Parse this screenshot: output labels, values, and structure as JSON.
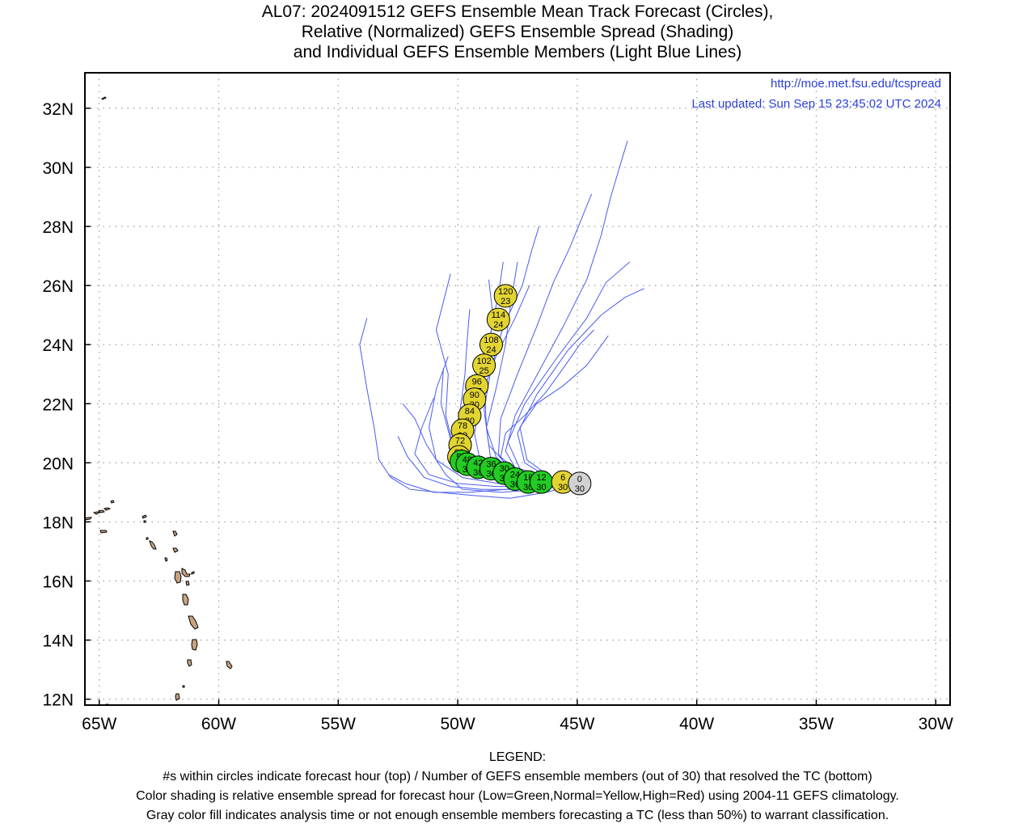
{
  "title": {
    "line1": "AL07: 2024091512 GEFS Ensemble Mean Track Forecast (Circles),",
    "line2": "Relative (Normalized) GEFS Ensemble Spread (Shading)",
    "line3": "and Individual GEFS Ensemble Members (Light Blue Lines)"
  },
  "url_text": "http://moe.met.fsu.edu/tcspread",
  "updated_text": "Last updated: Sun Sep 15 23:45:02 UTC 2024",
  "colors": {
    "member_line": "#4a5cf0",
    "land": "#c8a47e",
    "grid": "#9a9a9a",
    "spread_low": "#22cc22",
    "spread_normal": "#e3d531",
    "spread_high": "#e02020",
    "analysis_gray": "#d2d2d2",
    "url": "#2a3fd6"
  },
  "chart_data": {
    "type": "map",
    "x_axis": {
      "range": [
        -65.6,
        -29.4
      ],
      "ticks": [
        {
          "value": -65,
          "label": "65W"
        },
        {
          "value": -60,
          "label": "60W"
        },
        {
          "value": -55,
          "label": "55W"
        },
        {
          "value": -50,
          "label": "50W"
        },
        {
          "value": -45,
          "label": "45W"
        },
        {
          "value": -40,
          "label": "40W"
        },
        {
          "value": -35,
          "label": "35W"
        },
        {
          "value": -30,
          "label": "30W"
        }
      ]
    },
    "y_axis": {
      "range": [
        11.8,
        33.2
      ],
      "ticks": [
        {
          "value": 12,
          "label": "12N"
        },
        {
          "value": 14,
          "label": "14N"
        },
        {
          "value": 16,
          "label": "16N"
        },
        {
          "value": 18,
          "label": "18N"
        },
        {
          "value": 20,
          "label": "20N"
        },
        {
          "value": 22,
          "label": "22N"
        },
        {
          "value": 24,
          "label": "24N"
        },
        {
          "value": 26,
          "label": "26N"
        },
        {
          "value": 28,
          "label": "28N"
        },
        {
          "value": 30,
          "label": "30N"
        },
        {
          "value": 32,
          "label": "32N"
        }
      ]
    },
    "grid": true,
    "mean_track": [
      {
        "hour": "0",
        "members": "30",
        "lon": -44.9,
        "lat": 19.3,
        "spread": "gray"
      },
      {
        "hour": "6",
        "members": "30",
        "lon": -45.6,
        "lat": 19.35,
        "spread": "normal"
      },
      {
        "hour": "12",
        "members": "30",
        "lon": -46.5,
        "lat": 19.35,
        "spread": "low"
      },
      {
        "hour": "18",
        "members": "30",
        "lon": -47.05,
        "lat": 19.35,
        "spread": "low"
      },
      {
        "hour": "24",
        "members": "30",
        "lon": -47.6,
        "lat": 19.45,
        "spread": "low"
      },
      {
        "hour": "30",
        "members": "30",
        "lon": -48.05,
        "lat": 19.65,
        "spread": "low"
      },
      {
        "hour": "36",
        "members": "30",
        "lon": -48.6,
        "lat": 19.8,
        "spread": "low"
      },
      {
        "hour": "42",
        "members": "30",
        "lon": -49.15,
        "lat": 19.85,
        "spread": "low"
      },
      {
        "hour": "48",
        "members": "30",
        "lon": -49.6,
        "lat": 19.95,
        "spread": "low"
      },
      {
        "hour": "54",
        "members": "30",
        "lon": -49.85,
        "lat": 20.05,
        "spread": "low"
      },
      {
        "hour": "60",
        "members": "30",
        "lon": -49.95,
        "lat": 20.2,
        "spread": "normal"
      },
      {
        "hour": "72",
        "members": "30",
        "lon": -49.9,
        "lat": 20.6,
        "spread": "normal"
      },
      {
        "hour": "78",
        "members": "30",
        "lon": -49.8,
        "lat": 21.1,
        "spread": "normal"
      },
      {
        "hour": "84",
        "members": "30",
        "lon": -49.5,
        "lat": 21.6,
        "spread": "normal"
      },
      {
        "hour": "90",
        "members": "30",
        "lon": -49.3,
        "lat": 22.15,
        "spread": "normal"
      },
      {
        "hour": "96",
        "members": "27",
        "lon": -49.2,
        "lat": 22.6,
        "spread": "normal"
      },
      {
        "hour": "102",
        "members": "25",
        "lon": -48.9,
        "lat": 23.3,
        "spread": "normal"
      },
      {
        "hour": "108",
        "members": "24",
        "lon": -48.6,
        "lat": 24.0,
        "spread": "normal"
      },
      {
        "hour": "114",
        "members": "24",
        "lon": -48.3,
        "lat": 24.85,
        "spread": "normal"
      },
      {
        "hour": "120",
        "members": "23",
        "lon": -48.0,
        "lat": 25.65,
        "spread": "normal"
      }
    ],
    "ensemble_members": [
      [
        [
          -44.9,
          19.3
        ],
        [
          -46.5,
          19.1
        ],
        [
          -48.2,
          19.0
        ],
        [
          -49.8,
          19.1
        ],
        [
          -50.5,
          19.6
        ],
        [
          -51.3,
          20.6
        ],
        [
          -51.8,
          21.5
        ],
        [
          -52.3,
          22.0
        ]
      ],
      [
        [
          -44.9,
          19.3
        ],
        [
          -46.4,
          19.2
        ],
        [
          -48.0,
          19.1
        ],
        [
          -49.5,
          19.0
        ],
        [
          -51.0,
          19.0
        ],
        [
          -52.2,
          19.3
        ],
        [
          -52.9,
          19.6
        ]
      ],
      [
        [
          -44.9,
          19.3
        ],
        [
          -46.3,
          19.0
        ],
        [
          -47.8,
          18.8
        ],
        [
          -49.4,
          18.9
        ],
        [
          -50.8,
          19.0
        ],
        [
          -52.0,
          19.1
        ],
        [
          -52.8,
          19.5
        ],
        [
          -53.3,
          20.1
        ],
        [
          -53.5,
          21.2
        ],
        [
          -53.8,
          22.5
        ],
        [
          -54.1,
          24.0
        ],
        [
          -53.8,
          24.9
        ]
      ],
      [
        [
          -44.9,
          19.3
        ],
        [
          -46.6,
          19.4
        ],
        [
          -48.2,
          19.6
        ],
        [
          -49.5,
          19.8
        ],
        [
          -50.2,
          20.6
        ],
        [
          -50.5,
          21.6
        ],
        [
          -50.4,
          23.0
        ],
        [
          -50.9,
          24.5
        ],
        [
          -50.3,
          26.4
        ]
      ],
      [
        [
          -44.9,
          19.3
        ],
        [
          -46.5,
          19.3
        ],
        [
          -48.0,
          19.5
        ],
        [
          -49.3,
          19.7
        ],
        [
          -49.8,
          20.5
        ],
        [
          -49.9,
          21.8
        ],
        [
          -49.7,
          23.0
        ],
        [
          -49.6,
          24.2
        ],
        [
          -49.5,
          25.2
        ]
      ],
      [
        [
          -44.9,
          19.3
        ],
        [
          -46.3,
          19.3
        ],
        [
          -47.8,
          19.5
        ],
        [
          -48.6,
          20.0
        ],
        [
          -48.8,
          21.2
        ],
        [
          -48.4,
          22.5
        ],
        [
          -48.0,
          24.0
        ],
        [
          -47.8,
          25.3
        ],
        [
          -47.5,
          26.8
        ]
      ],
      [
        [
          -44.9,
          19.3
        ],
        [
          -46.4,
          19.4
        ],
        [
          -47.7,
          19.6
        ],
        [
          -48.3,
          20.3
        ],
        [
          -48.2,
          21.5
        ],
        [
          -47.5,
          23.0
        ],
        [
          -46.7,
          24.6
        ],
        [
          -46.0,
          26.1
        ],
        [
          -45.3,
          27.3
        ],
        [
          -44.8,
          28.3
        ],
        [
          -44.4,
          29.1
        ]
      ],
      [
        [
          -44.9,
          19.3
        ],
        [
          -46.3,
          19.4
        ],
        [
          -47.5,
          19.7
        ],
        [
          -48.0,
          20.4
        ],
        [
          -47.6,
          21.6
        ],
        [
          -46.6,
          23.1
        ],
        [
          -45.6,
          24.6
        ],
        [
          -44.6,
          26.2
        ],
        [
          -44.0,
          27.7
        ],
        [
          -43.6,
          29.0
        ],
        [
          -42.9,
          30.9
        ]
      ],
      [
        [
          -44.9,
          19.3
        ],
        [
          -46.2,
          19.5
        ],
        [
          -47.4,
          19.8
        ],
        [
          -47.9,
          20.7
        ],
        [
          -47.2,
          22.0
        ],
        [
          -45.9,
          23.5
        ],
        [
          -44.6,
          24.9
        ],
        [
          -43.8,
          26.1
        ],
        [
          -42.8,
          26.8
        ]
      ],
      [
        [
          -44.9,
          19.3
        ],
        [
          -46.2,
          19.5
        ],
        [
          -47.2,
          20.0
        ],
        [
          -47.5,
          21.0
        ],
        [
          -46.7,
          22.3
        ],
        [
          -45.4,
          23.8
        ],
        [
          -44.0,
          25.0
        ],
        [
          -43.0,
          25.6
        ],
        [
          -42.2,
          25.9
        ]
      ],
      [
        [
          -44.9,
          19.3
        ],
        [
          -46.1,
          19.5
        ],
        [
          -47.1,
          20.1
        ],
        [
          -47.4,
          21.2
        ],
        [
          -46.7,
          22.0
        ],
        [
          -45.6,
          22.6
        ],
        [
          -44.6,
          23.3
        ],
        [
          -43.7,
          24.3
        ]
      ],
      [
        [
          -44.9,
          19.3
        ],
        [
          -46.3,
          19.4
        ],
        [
          -47.6,
          19.6
        ],
        [
          -48.4,
          20.2
        ],
        [
          -48.8,
          21.2
        ],
        [
          -48.9,
          22.8
        ],
        [
          -48.6,
          24.5
        ],
        [
          -48.3,
          25.7
        ],
        [
          -48.1,
          26.8
        ]
      ],
      [
        [
          -44.9,
          19.3
        ],
        [
          -46.4,
          19.3
        ],
        [
          -47.9,
          19.4
        ],
        [
          -49.0,
          19.8
        ],
        [
          -49.3,
          21.0
        ],
        [
          -49.0,
          22.3
        ],
        [
          -48.4,
          23.6
        ],
        [
          -47.6,
          24.9
        ],
        [
          -47.0,
          26.0
        ]
      ],
      [
        [
          -44.9,
          19.3
        ],
        [
          -46.6,
          19.2
        ],
        [
          -48.4,
          19.2
        ],
        [
          -50.0,
          19.3
        ],
        [
          -51.2,
          19.6
        ],
        [
          -51.8,
          20.3
        ],
        [
          -51.5,
          21.2
        ],
        [
          -51.0,
          22.2
        ]
      ],
      [
        [
          -44.9,
          19.3
        ],
        [
          -46.5,
          19.2
        ],
        [
          -48.3,
          19.3
        ],
        [
          -49.8,
          19.5
        ],
        [
          -50.9,
          20.1
        ],
        [
          -51.2,
          21.2
        ],
        [
          -50.9,
          22.5
        ],
        [
          -50.4,
          23.6
        ]
      ],
      [
        [
          -44.9,
          19.3
        ],
        [
          -46.4,
          19.3
        ],
        [
          -48.1,
          19.4
        ],
        [
          -49.3,
          19.7
        ],
        [
          -49.6,
          20.6
        ],
        [
          -49.4,
          22.0
        ],
        [
          -48.9,
          23.4
        ],
        [
          -48.5,
          24.8
        ],
        [
          -48.7,
          26.2
        ]
      ],
      [
        [
          -44.9,
          19.3
        ],
        [
          -46.3,
          19.2
        ],
        [
          -47.7,
          19.1
        ],
        [
          -49.0,
          19.1
        ],
        [
          -50.3,
          19.2
        ],
        [
          -51.4,
          19.5
        ],
        [
          -52.1,
          20.2
        ],
        [
          -52.5,
          20.9
        ]
      ],
      [
        [
          -44.9,
          19.3
        ],
        [
          -46.2,
          19.4
        ],
        [
          -47.5,
          19.7
        ],
        [
          -48.2,
          20.2
        ],
        [
          -48.0,
          21.0
        ],
        [
          -47.2,
          21.6
        ],
        [
          -46.3,
          22.4
        ],
        [
          -45.5,
          23.3
        ],
        [
          -44.9,
          24.0
        ],
        [
          -44.3,
          24.5
        ]
      ],
      [
        [
          -44.9,
          19.3
        ],
        [
          -46.4,
          19.5
        ],
        [
          -47.8,
          19.8
        ],
        [
          -48.7,
          20.6
        ],
        [
          -48.9,
          21.8
        ],
        [
          -48.6,
          23.2
        ],
        [
          -48.1,
          24.6
        ],
        [
          -47.3,
          26.0
        ],
        [
          -46.9,
          27.2
        ],
        [
          -46.6,
          28.0
        ]
      ],
      [
        [
          -44.9,
          19.3
        ],
        [
          -46.6,
          19.3
        ],
        [
          -48.3,
          19.5
        ],
        [
          -49.5,
          20.0
        ],
        [
          -50.3,
          20.8
        ],
        [
          -50.7,
          22.0
        ],
        [
          -50.6,
          23.2
        ]
      ]
    ]
  }
}
